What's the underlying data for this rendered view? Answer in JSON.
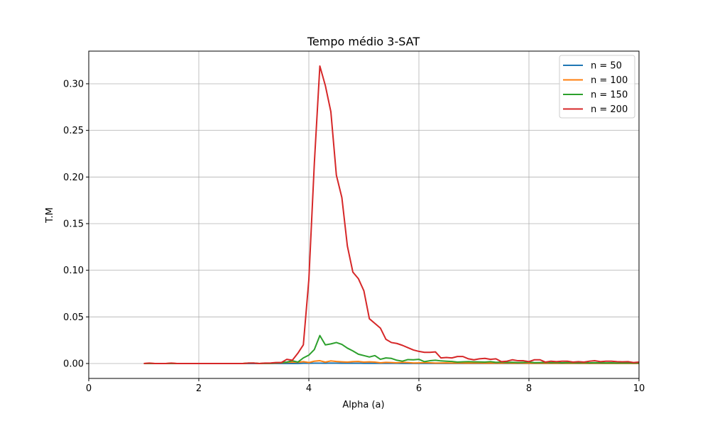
{
  "chart_data": {
    "type": "line",
    "title": "Tempo médio 3-SAT",
    "xlabel": "Alpha (a)",
    "ylabel": "T.M",
    "xlim": [
      0,
      10
    ],
    "ylim": [
      -0.016,
      0.335
    ],
    "xticks": [
      0,
      2,
      4,
      6,
      8,
      10
    ],
    "yticks": [
      0.0,
      0.05,
      0.1,
      0.15,
      0.2,
      0.25,
      0.3
    ],
    "ytick_labels": [
      "0.00",
      "0.05",
      "0.10",
      "0.15",
      "0.20",
      "0.25",
      "0.30"
    ],
    "grid": true,
    "legend_position": "upper-right",
    "x": [
      1.0,
      1.1,
      1.2,
      1.3,
      1.4,
      1.5,
      1.6,
      1.7,
      1.8,
      1.9,
      2.0,
      2.1,
      2.2,
      2.3,
      2.4,
      2.5,
      2.6,
      2.7,
      2.8,
      2.9,
      3.0,
      3.1,
      3.2,
      3.3,
      3.4,
      3.5,
      3.6,
      3.7,
      3.8,
      3.9,
      4.0,
      4.1,
      4.2,
      4.3,
      4.4,
      4.5,
      4.6,
      4.7,
      4.8,
      4.9,
      5.0,
      5.1,
      5.2,
      5.3,
      5.4,
      5.5,
      5.6,
      5.7,
      5.8,
      5.9,
      6.0,
      6.1,
      6.2,
      6.3,
      6.4,
      6.5,
      6.6,
      6.7,
      6.8,
      6.9,
      7.0,
      7.1,
      7.2,
      7.3,
      7.4,
      7.5,
      7.6,
      7.7,
      7.8,
      7.9,
      8.0,
      8.1,
      8.2,
      8.3,
      8.4,
      8.5,
      8.6,
      8.7,
      8.8,
      8.9,
      9.0,
      9.1,
      9.2,
      9.3,
      9.4,
      9.5,
      9.6,
      9.7,
      9.8,
      9.9,
      10.0
    ],
    "series": [
      {
        "name": "n = 50",
        "color": "#1f77b4",
        "values": [
          0,
          0,
          0,
          0,
          0,
          0,
          0,
          0,
          0,
          0,
          0,
          0,
          0,
          0,
          0,
          0,
          0,
          0,
          0,
          0,
          0,
          0,
          0,
          0,
          0,
          0,
          0,
          0,
          0,
          0.0003,
          0.0003,
          0.0004,
          0.0004,
          0.0003,
          0.0005,
          0.0004,
          0.0003,
          0.0003,
          0.0003,
          0.0003,
          0.0002,
          0.0003,
          0.0002,
          0.0002,
          0.0002,
          0.0002,
          0.0002,
          0.0001,
          0.0002,
          0.0001,
          0.0001,
          0.0001,
          0.0001,
          0.0001,
          0.0001,
          0.0001,
          0.0001,
          0.0001,
          0.0001,
          0.0001,
          0.0001,
          0.0001,
          0.0001,
          0.0001,
          0.0001,
          0.0001,
          0.0001,
          0.0001,
          0.0001,
          0.0001,
          0.0001,
          0.0001,
          0.0001,
          0.0001,
          0.0001,
          0.0001,
          0.0001,
          0.0001,
          0.0001,
          0.0001,
          0.0001,
          0.0001,
          0.0001,
          0.0001,
          0.0001,
          0.0001,
          0.0001,
          0.0001,
          0.0001,
          0.0001,
          0.0001
        ]
      },
      {
        "name": "n = 100",
        "color": "#ff7f0e",
        "values": [
          0,
          0.0003,
          0,
          0,
          0,
          0.0004,
          0,
          0,
          0,
          0,
          0,
          0,
          0,
          0,
          0,
          0,
          0,
          0,
          0,
          0.0004,
          0.0005,
          0,
          0.0003,
          0.0002,
          0.0005,
          0.0008,
          0.0012,
          0.0015,
          0.0012,
          0.002,
          0.001,
          0.0025,
          0.003,
          0.0015,
          0.0028,
          0.0022,
          0.0018,
          0.0015,
          0.002,
          0.0022,
          0.0015,
          0.0018,
          0.0015,
          0.0008,
          0.0012,
          0.001,
          0.0008,
          0.0012,
          0.001,
          0.0006,
          0.0007,
          0.0009,
          0.0008,
          0.0005,
          0.0006,
          0.0007,
          0.0005,
          0.0006,
          0.0005,
          0.0004,
          0.0006,
          0.0005,
          0.0004,
          0.0004,
          0.0005,
          0.0004,
          0.0006,
          0.0003,
          0.0004,
          0.0005,
          0.0003,
          0.0004,
          0.0003,
          0.0004,
          0.0003,
          0.0003,
          0.0004,
          0.0003,
          0.0003,
          0.0004,
          0.0003,
          0.0002,
          0.0003,
          0.0003,
          0.0002,
          0.0003,
          0.0002,
          0.0003,
          0.0002,
          0.0002,
          0.0002
        ]
      },
      {
        "name": "n = 150",
        "color": "#2ca02c",
        "values": [
          0,
          0,
          0,
          0,
          0,
          0,
          0,
          0,
          0,
          0,
          0,
          0,
          0,
          0,
          0,
          0,
          0,
          0,
          0,
          0.0005,
          0.0005,
          0,
          0.0003,
          0.0002,
          0.0008,
          0.001,
          0.0015,
          0.003,
          0.0015,
          0.006,
          0.009,
          0.015,
          0.03,
          0.02,
          0.021,
          0.0225,
          0.0205,
          0.0165,
          0.0135,
          0.01,
          0.0085,
          0.007,
          0.0085,
          0.0045,
          0.006,
          0.0055,
          0.0035,
          0.0025,
          0.0042,
          0.004,
          0.0045,
          0.002,
          0.003,
          0.0035,
          0.0028,
          0.0025,
          0.0022,
          0.0015,
          0.0018,
          0.002,
          0.0018,
          0.0017,
          0.0015,
          0.002,
          0.0012,
          0.0015,
          0.0012,
          0.0013,
          0.001,
          0.0012,
          0.0015,
          0.0009,
          0.001,
          0.0012,
          0.0009,
          0.0011,
          0.0008,
          0.001,
          0.0009,
          0.0008,
          0.001,
          0.0007,
          0.0009,
          0.0008,
          0.0007,
          0.0008,
          0.0006,
          0.0008,
          0.0007,
          0.0006,
          0.0007
        ]
      },
      {
        "name": "n = 200",
        "color": "#d62728",
        "values": [
          0,
          0.0005,
          0,
          0,
          0,
          0.0005,
          0,
          0,
          0,
          0,
          0,
          0,
          0,
          0,
          0,
          0,
          0,
          0,
          0,
          0.0005,
          0.0005,
          0,
          0.0005,
          0.0005,
          0.001,
          0.001,
          0.0045,
          0.0035,
          0.011,
          0.02,
          0.09,
          0.215,
          0.319,
          0.298,
          0.27,
          0.202,
          0.178,
          0.126,
          0.098,
          0.091,
          0.078,
          0.048,
          0.043,
          0.038,
          0.026,
          0.0225,
          0.0215,
          0.0195,
          0.017,
          0.0145,
          0.013,
          0.012,
          0.012,
          0.0125,
          0.006,
          0.0065,
          0.006,
          0.0075,
          0.0075,
          0.005,
          0.004,
          0.005,
          0.0055,
          0.0045,
          0.005,
          0.002,
          0.0025,
          0.004,
          0.003,
          0.003,
          0.002,
          0.004,
          0.004,
          0.0015,
          0.0025,
          0.002,
          0.0025,
          0.0025,
          0.0015,
          0.002,
          0.0015,
          0.0025,
          0.003,
          0.002,
          0.0025,
          0.0025,
          0.002,
          0.0018,
          0.002,
          0.001,
          0.0015
        ]
      }
    ]
  }
}
